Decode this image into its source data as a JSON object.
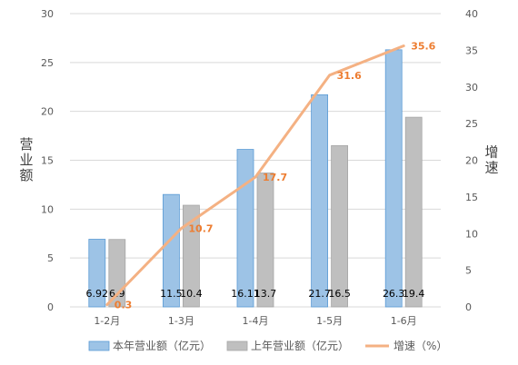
{
  "chart_data": {
    "type": "bar",
    "categories": [
      "1-2月",
      "1-3月",
      "1-4月",
      "1-5月",
      "1-6月"
    ],
    "series": [
      {
        "name": "本年营业额（亿元）",
        "type": "bar",
        "axis": "left",
        "color": "#9DC3E6",
        "stroke": "#5B9BD5",
        "values": [
          6.92,
          11.5,
          16.11,
          21.7,
          26.3
        ],
        "labels": [
          "6.92",
          "11.5",
          "16.11",
          "21.7",
          "26.3"
        ]
      },
      {
        "name": "上年营业额（亿元）",
        "type": "bar",
        "axis": "left",
        "color": "#BFBFBF",
        "stroke": "#A6A6A6",
        "values": [
          6.9,
          10.4,
          13.7,
          16.5,
          19.4
        ],
        "labels": [
          "6.9",
          "10.4",
          "13.7",
          "16.5",
          "19.4"
        ]
      },
      {
        "name": "增速（%）",
        "type": "line",
        "axis": "right",
        "color": "#F4B183",
        "values": [
          0.3,
          10.7,
          17.7,
          31.6,
          35.6
        ],
        "labels": [
          "0.3",
          "10.7",
          "17.7",
          "31.6",
          "35.6"
        ]
      }
    ],
    "ylabel": "营业额",
    "y2label": "增速",
    "ylim": [
      0,
      30
    ],
    "y2lim": [
      0,
      40
    ],
    "yticks": [
      "0",
      "5",
      "10",
      "15",
      "20",
      "25",
      "30"
    ],
    "y2ticks": [
      "0",
      "5",
      "10",
      "15",
      "20",
      "25",
      "30",
      "35",
      "40"
    ],
    "grid": true,
    "legend_position": "bottom"
  }
}
